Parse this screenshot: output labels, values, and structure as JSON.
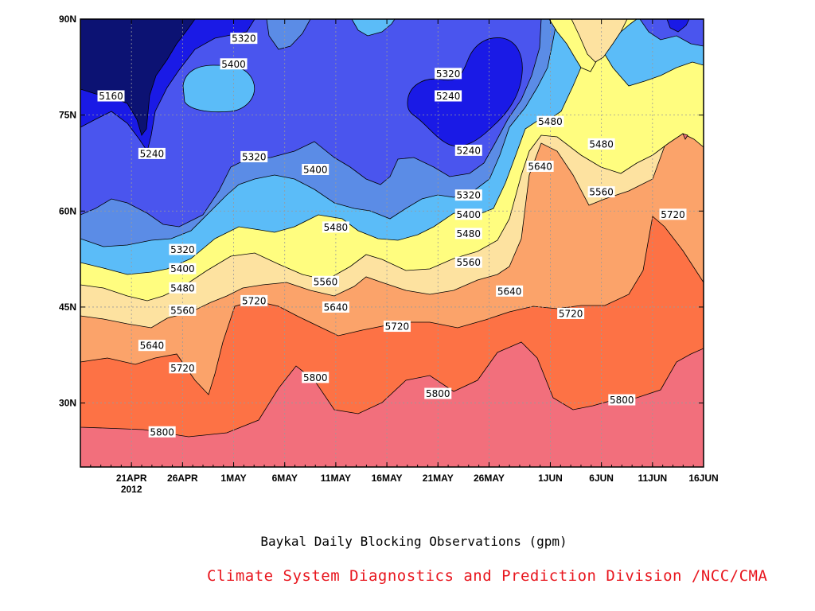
{
  "chart_data": {
    "type": "heatmap",
    "title": "Baykal Daily Blocking Observations (gpm)",
    "xlabel": "",
    "ylabel": "",
    "x_ticks": [
      "21APR",
      "26APR",
      "1MAY",
      "6MAY",
      "11MAY",
      "16MAY",
      "21MAY",
      "26MAY",
      "1JUN",
      "6JUN",
      "11JUN",
      "16JUN"
    ],
    "x_year_label": "2012",
    "y_ticks": [
      "30N",
      "45N",
      "60N",
      "75N",
      "90N"
    ],
    "contour_levels": [
      5160,
      5240,
      5320,
      5400,
      5480,
      5560,
      5640,
      5720,
      5800
    ],
    "contour_labels": [
      {
        "value": "5160",
        "date": "2012-04-19",
        "lat": 78
      },
      {
        "value": "5240",
        "date": "2012-04-23",
        "lat": 69
      },
      {
        "value": "5320",
        "date": "2012-05-02",
        "lat": 87
      },
      {
        "value": "5400",
        "date": "2012-05-01",
        "lat": 83
      },
      {
        "value": "5320",
        "date": "2012-05-03",
        "lat": 68.5
      },
      {
        "value": "5400",
        "date": "2012-05-09",
        "lat": 66.5
      },
      {
        "value": "5320",
        "date": "2012-05-22",
        "lat": 81.5
      },
      {
        "value": "5240",
        "date": "2012-05-22",
        "lat": 78
      },
      {
        "value": "5240",
        "date": "2012-05-24",
        "lat": 69.5
      },
      {
        "value": "5320",
        "date": "2012-05-24",
        "lat": 62.5
      },
      {
        "value": "5400",
        "date": "2012-05-24",
        "lat": 59.5
      },
      {
        "value": "5480",
        "date": "2012-05-24",
        "lat": 56.5
      },
      {
        "value": "5480",
        "date": "2012-05-11",
        "lat": 57.5
      },
      {
        "value": "5320",
        "date": "2012-04-26",
        "lat": 54
      },
      {
        "value": "5400",
        "date": "2012-04-26",
        "lat": 51
      },
      {
        "value": "5480",
        "date": "2012-04-26",
        "lat": 48
      },
      {
        "value": "5560",
        "date": "2012-04-26",
        "lat": 44.5
      },
      {
        "value": "5640",
        "date": "2012-04-23",
        "lat": 39
      },
      {
        "value": "5720",
        "date": "2012-04-26",
        "lat": 35.5
      },
      {
        "value": "5720",
        "date": "2012-05-03",
        "lat": 46
      },
      {
        "value": "5560",
        "date": "2012-05-10",
        "lat": 49
      },
      {
        "value": "5640",
        "date": "2012-05-11",
        "lat": 45
      },
      {
        "value": "5720",
        "date": "2012-05-17",
        "lat": 42
      },
      {
        "value": "5560",
        "date": "2012-05-24",
        "lat": 52
      },
      {
        "value": "5640",
        "date": "2012-05-28",
        "lat": 47.5
      },
      {
        "value": "5800",
        "date": "2012-05-09",
        "lat": 34
      },
      {
        "value": "5800",
        "date": "2012-05-21",
        "lat": 31.5
      },
      {
        "value": "5800",
        "date": "2012-04-24",
        "lat": 25.5
      },
      {
        "value": "5480",
        "date": "2012-06-01",
        "lat": 74
      },
      {
        "value": "5480",
        "date": "2012-06-06",
        "lat": 70.5
      },
      {
        "value": "5640",
        "date": "2012-05-31",
        "lat": 67
      },
      {
        "value": "5560",
        "date": "2012-06-06",
        "lat": 63
      },
      {
        "value": "5720",
        "date": "2012-06-13",
        "lat": 59.5
      },
      {
        "value": "5720",
        "date": "2012-06-03",
        "lat": 44
      },
      {
        "value": "5800",
        "date": "2012-06-08",
        "lat": 30.5
      }
    ],
    "band_colors": {
      "below_5160": "#0c1273",
      "5160_5240": "#1a1ae6",
      "5240_5320": "#4a55ee",
      "5320_5400": "#5b8ce6",
      "5400_5480": "#5bbcf8",
      "5480_5560": "#fffd7f",
      "5560_5640": "#fde2a0",
      "5640_5720": "#fba36a",
      "5720_5800": "#fd7245",
      "above_5800": "#f26f7c"
    }
  },
  "caption": "Baykal Daily Blocking Observations (gpm)",
  "credit": "Climate System Diagnostics and Prediction Division /NCC/CMA"
}
